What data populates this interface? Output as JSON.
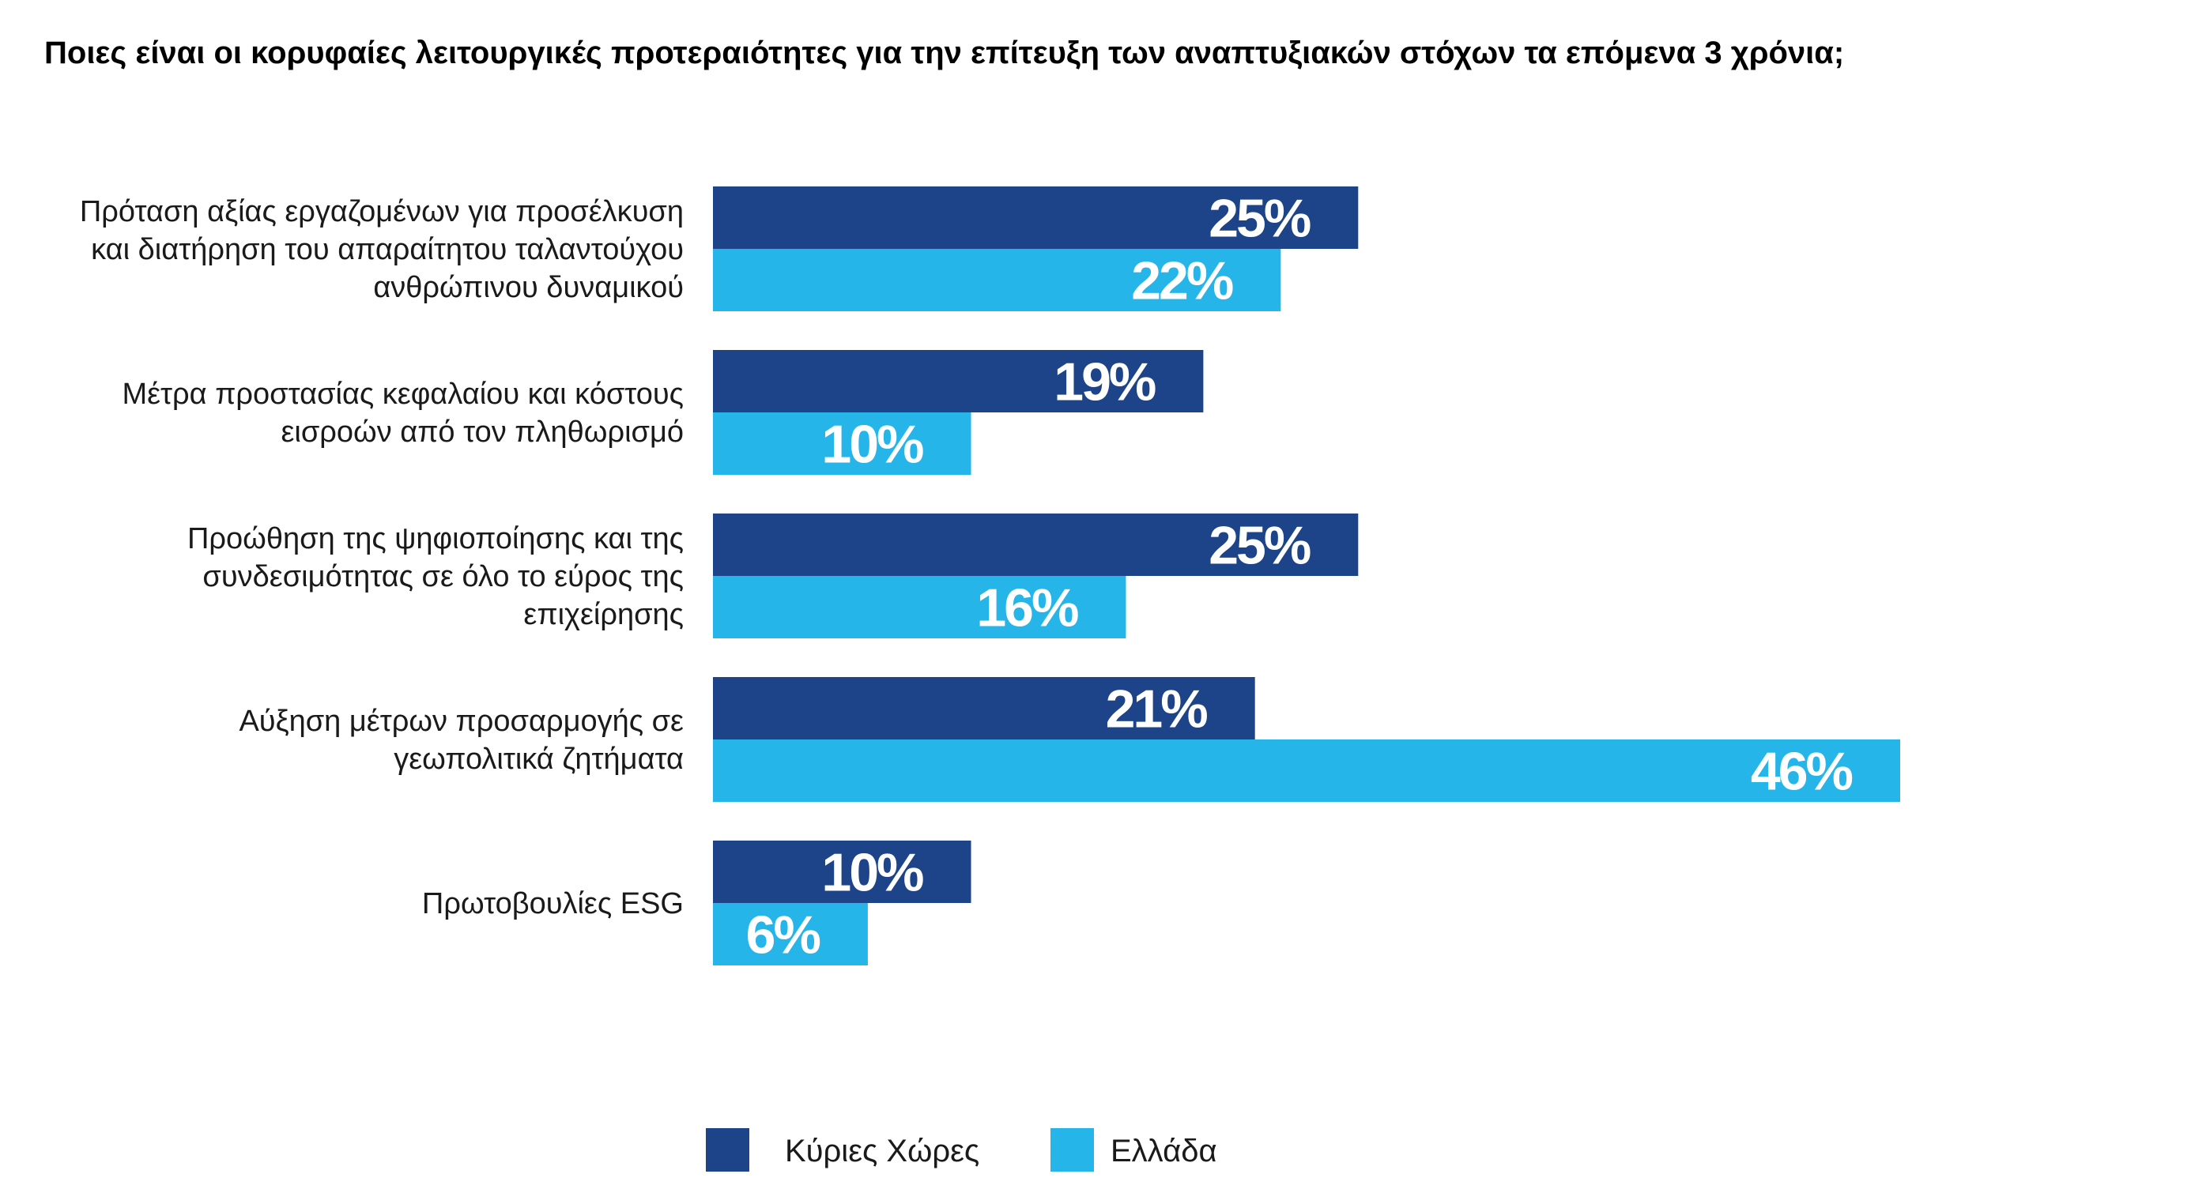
{
  "chart_data": {
    "type": "bar",
    "orientation": "horizontal",
    "title": "Ποιες είναι οι κορυφαίες λειτουργικές προτεραιότητες για την επίτευξη των αναπτυξιακών στόχων τα επόμενα 3 χρόνια;",
    "categories": [
      [
        "Πρόταση αξίας εργαζομένων για προσέλκυση",
        "και διατήρηση του απαραίτητου ταλαντούχου",
        "ανθρώπινου δυναμικού"
      ],
      [
        "Μέτρα προστασίας κεφαλαίου και κόστους",
        "εισροών από τον πληθωρισμό"
      ],
      [
        "Προώθηση της ψηφιοποίησης και της",
        "συνδεσιμότητας σε όλο το εύρος της",
        "επιχείρησης"
      ],
      [
        "Αύξηση μέτρων προσαρμογής σε",
        "γεωπολιτικά ζητήματα"
      ],
      [
        "Πρωτοβουλίες ESG"
      ]
    ],
    "series": [
      {
        "name": "Κύριες Χώρες",
        "color": "#1d4488",
        "values": [
          25,
          19,
          25,
          21,
          10
        ],
        "labels": [
          "25%",
          "19%",
          "25%",
          "21%",
          "10%"
        ]
      },
      {
        "name": "Ελλάδα",
        "color": "#26b5e8",
        "values": [
          22,
          10,
          16,
          46,
          6
        ],
        "labels": [
          "22%",
          "10%",
          "16%",
          "46%",
          "6%"
        ]
      }
    ],
    "xlabel": "",
    "ylabel": "",
    "xlim": [
      0,
      46
    ],
    "grid": false,
    "legend_position": "bottom-center",
    "unit": "%"
  }
}
